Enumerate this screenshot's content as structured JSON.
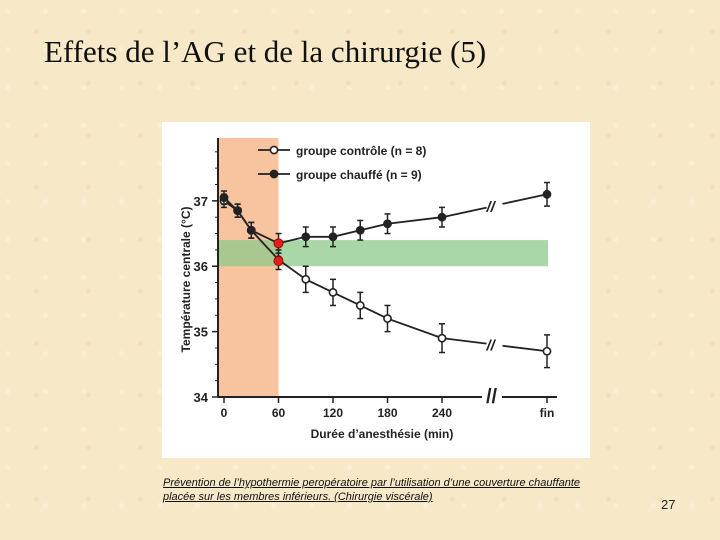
{
  "slide": {
    "title": "Effets de l’AG et de la chirurgie (5)",
    "caption": "Prévention de l’hypothermie peropératoire par l’utilisation d’une couverture chauffante placée sur les membres inférieurs. (Chirurgie viscérale)",
    "page_number": "27"
  },
  "chart_data": {
    "type": "line",
    "title": "",
    "xlabel": "Durée d’anesthésie (min)",
    "ylabel": "Température centrale (°C)",
    "x_tick_labels": [
      "0",
      "60",
      "120",
      "180",
      "240",
      "fin"
    ],
    "y_ticks": [
      34,
      35,
      36,
      37
    ],
    "ylim": [
      34,
      37.9
    ],
    "x_break_symbol": "//",
    "legend_position": "top",
    "series": [
      {
        "name": "groupe contrôle (n = 8)",
        "marker": "open-circle",
        "color": "#222222",
        "x": [
          0,
          15,
          30,
          60,
          90,
          120,
          150,
          180,
          240,
          "fin"
        ],
        "y": [
          37.0,
          36.85,
          36.55,
          36.1,
          35.8,
          35.6,
          35.4,
          35.2,
          34.9,
          34.7
        ],
        "err": [
          0.1,
          0.1,
          0.12,
          0.15,
          0.2,
          0.2,
          0.2,
          0.2,
          0.22,
          0.25
        ]
      },
      {
        "name": "groupe chauffé (n = 9)",
        "marker": "filled-circle",
        "color": "#222222",
        "x": [
          0,
          15,
          30,
          60,
          90,
          120,
          150,
          180,
          240,
          "fin"
        ],
        "y": [
          37.05,
          36.85,
          36.55,
          36.35,
          36.45,
          36.45,
          36.55,
          36.65,
          36.75,
          37.1
        ],
        "err": [
          0.1,
          0.1,
          0.12,
          0.15,
          0.15,
          0.15,
          0.15,
          0.15,
          0.15,
          0.18
        ]
      }
    ],
    "highlights": [
      {
        "kind": "vertical-band",
        "x_range": [
          0,
          60
        ],
        "color": "#f7b88e"
      },
      {
        "kind": "horizontal-band",
        "y_range": [
          36.0,
          36.4
        ],
        "color": "#8ec98a"
      }
    ],
    "marked_points": [
      {
        "x": 60,
        "y": 36.35,
        "color": "#e02020"
      },
      {
        "x": 60,
        "y": 36.08,
        "color": "#e02020"
      }
    ]
  }
}
